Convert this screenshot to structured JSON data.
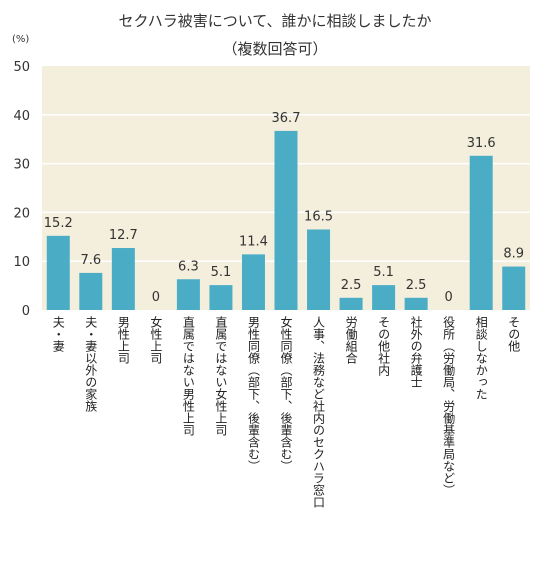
{
  "unit_label": "(%)",
  "colors": {
    "plot_bg": "#F3EFDC",
    "bar": "#4BACC6",
    "grid": "#FFFFFF"
  },
  "chart_data": {
    "type": "bar",
    "title": "セクハラ被害について、誰かに相談しましたか",
    "subtitle": "（複数回答可）",
    "xlabel": "",
    "ylabel": "",
    "ylim": [
      0,
      50
    ],
    "yticks": [
      0,
      10,
      20,
      30,
      40,
      50
    ],
    "grid": true,
    "categories": [
      "夫・妻",
      "夫・妻以外の家族",
      "男性上司",
      "女性上司",
      "直属ではない男性上司",
      "直属ではない女性上司",
      "男性同僚（部下、後輩含む）",
      "女性同僚（部下、後輩含む）",
      "人事、法務など社内のセクハラ窓口",
      "労働組合",
      "その他社内",
      "社外の弁護士",
      "役所（労働局、労働基準局など）",
      "相談しなかった",
      "その他"
    ],
    "values": [
      15.2,
      7.6,
      12.7,
      0,
      6.3,
      5.1,
      11.4,
      36.7,
      16.5,
      2.5,
      5.1,
      2.5,
      0,
      31.6,
      8.9
    ],
    "value_labels": [
      "15.2",
      "7.6",
      "12.7",
      "0",
      "6.3",
      "5.1",
      "11.4",
      "36.7",
      "16.5",
      "2.5",
      "5.1",
      "2.5",
      "0",
      "31.6",
      "8.9"
    ]
  }
}
